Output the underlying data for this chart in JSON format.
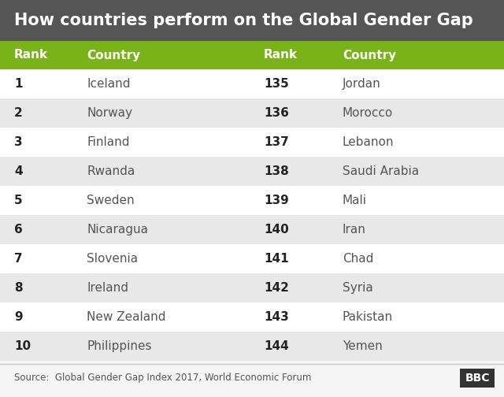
{
  "title": "How countries perform on the Global Gender Gap",
  "title_bg_color": "#555555",
  "title_text_color": "#ffffff",
  "header_bg_color": "#7ab317",
  "header_text_color": "#ffffff",
  "header_labels": [
    "Rank",
    "Country",
    "Rank",
    "Country"
  ],
  "top10_ranks": [
    "1",
    "2",
    "3",
    "4",
    "5",
    "6",
    "7",
    "8",
    "9",
    "10"
  ],
  "top10_countries": [
    "Iceland",
    "Norway",
    "Finland",
    "Rwanda",
    "Sweden",
    "Nicaragua",
    "Slovenia",
    "Ireland",
    "New Zealand",
    "Philippines"
  ],
  "bottom10_ranks": [
    "135",
    "136",
    "137",
    "138",
    "139",
    "140",
    "141",
    "142",
    "143",
    "144"
  ],
  "bottom10_countries": [
    "Jordan",
    "Morocco",
    "Lebanon",
    "Saudi Arabia",
    "Mali",
    "Iran",
    "Chad",
    "Syria",
    "Pakistan",
    "Yemen"
  ],
  "row_colors_even": "#ffffff",
  "row_colors_odd": "#e8e8e8",
  "rank_text_color": "#222222",
  "country_text_color": "#555555",
  "source_text": "Source:  Global Gender Gap Index 2017, World Economic Forum",
  "bbc_text": "BBC",
  "footer_bg_color": "#f5f5f5",
  "footer_text_color": "#555555",
  "bbc_bg_color": "#333333",
  "bbc_text_color": "#ffffff",
  "fig_width": 6.4,
  "fig_height": 5.04,
  "dpi": 100
}
